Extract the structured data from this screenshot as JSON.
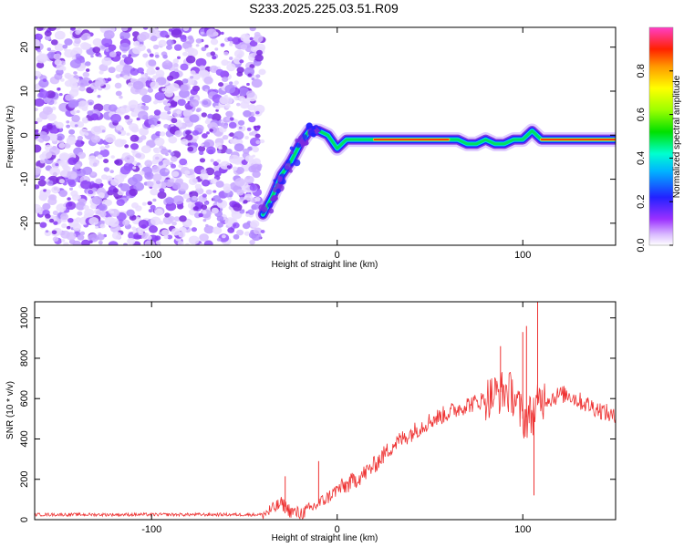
{
  "figure_title": "S233.2025.225.03.51.R09",
  "colors": {
    "snr_line": "#ee3333",
    "scatter": "#7b2be0",
    "frame": "#000000"
  },
  "chart_data": [
    {
      "type": "heatmap",
      "title": "S233.2025.225.03.51.R09",
      "xlabel": "Height of straight line (km)",
      "ylabel": "Frequency (Hz)",
      "xlim": [
        -163,
        150
      ],
      "ylim": [
        -25,
        24.5
      ],
      "xticks": [
        -100,
        0,
        100
      ],
      "yticks": [
        -20,
        -10,
        0,
        10,
        20
      ],
      "noise_region_x": [
        -163,
        -40
      ],
      "ridge": [
        {
          "x": -40,
          "y": -18
        },
        {
          "x": -35,
          "y": -14
        },
        {
          "x": -30,
          "y": -9
        },
        {
          "x": -25,
          "y": -6
        },
        {
          "x": -20,
          "y": -2
        },
        {
          "x": -15,
          "y": 1
        },
        {
          "x": -10,
          "y": 1
        },
        {
          "x": -5,
          "y": 0
        },
        {
          "x": 0,
          "y": -3
        },
        {
          "x": 5,
          "y": -1
        },
        {
          "x": 10,
          "y": -1
        },
        {
          "x": 20,
          "y": -1
        },
        {
          "x": 30,
          "y": -1
        },
        {
          "x": 40,
          "y": -1
        },
        {
          "x": 50,
          "y": -1
        },
        {
          "x": 60,
          "y": -1
        },
        {
          "x": 65,
          "y": -1
        },
        {
          "x": 70,
          "y": -2
        },
        {
          "x": 75,
          "y": -2
        },
        {
          "x": 80,
          "y": -1
        },
        {
          "x": 85,
          "y": -2
        },
        {
          "x": 90,
          "y": -2
        },
        {
          "x": 95,
          "y": -1
        },
        {
          "x": 100,
          "y": -1
        },
        {
          "x": 105,
          "y": 1
        },
        {
          "x": 110,
          "y": -1
        },
        {
          "x": 120,
          "y": -1
        },
        {
          "x": 130,
          "y": -1
        },
        {
          "x": 140,
          "y": -1
        },
        {
          "x": 150,
          "y": -1
        }
      ],
      "colorbar": {
        "label": "Normalized spectral amplitude",
        "range": [
          0,
          1
        ],
        "ticks": [
          0.0,
          0.2,
          0.4,
          0.6,
          0.8
        ],
        "tick_labels": [
          "0.0",
          "0.2",
          "0.4",
          "0.6",
          "0.8"
        ]
      }
    },
    {
      "type": "line",
      "xlabel": "Height of straight line (km)",
      "ylabel": "SNR (10 * v/v)",
      "xlim": [
        -163,
        150
      ],
      "ylim": [
        0,
        1080
      ],
      "xticks": [
        -100,
        0,
        100
      ],
      "yticks": [
        0,
        200,
        400,
        600,
        800,
        1000
      ],
      "series": [
        {
          "name": "SNR",
          "x": [
            -163,
            -40,
            -35,
            -30,
            -25,
            -20,
            -15,
            -10,
            -5,
            0,
            5,
            10,
            15,
            20,
            25,
            30,
            35,
            40,
            45,
            50,
            55,
            60,
            65,
            70,
            75,
            80,
            85,
            90,
            95,
            100,
            105,
            110,
            115,
            120,
            125,
            130,
            135,
            140,
            145,
            150
          ],
          "values": [
            25,
            25,
            50,
            80,
            40,
            30,
            50,
            80,
            110,
            150,
            170,
            200,
            230,
            270,
            320,
            370,
            400,
            430,
            460,
            490,
            510,
            530,
            550,
            570,
            580,
            600,
            620,
            640,
            620,
            500,
            520,
            600,
            600,
            620,
            620,
            590,
            570,
            550,
            530,
            500
          ],
          "spikes": [
            {
              "x": -28,
              "y": 215
            },
            {
              "x": -10,
              "y": 290
            },
            {
              "x": 88,
              "y": 860
            },
            {
              "x": 100,
              "y": 930
            },
            {
              "x": 102,
              "y": 960
            },
            {
              "x": 106,
              "y": 120
            },
            {
              "x": 108,
              "y": 1080
            }
          ]
        }
      ]
    }
  ]
}
